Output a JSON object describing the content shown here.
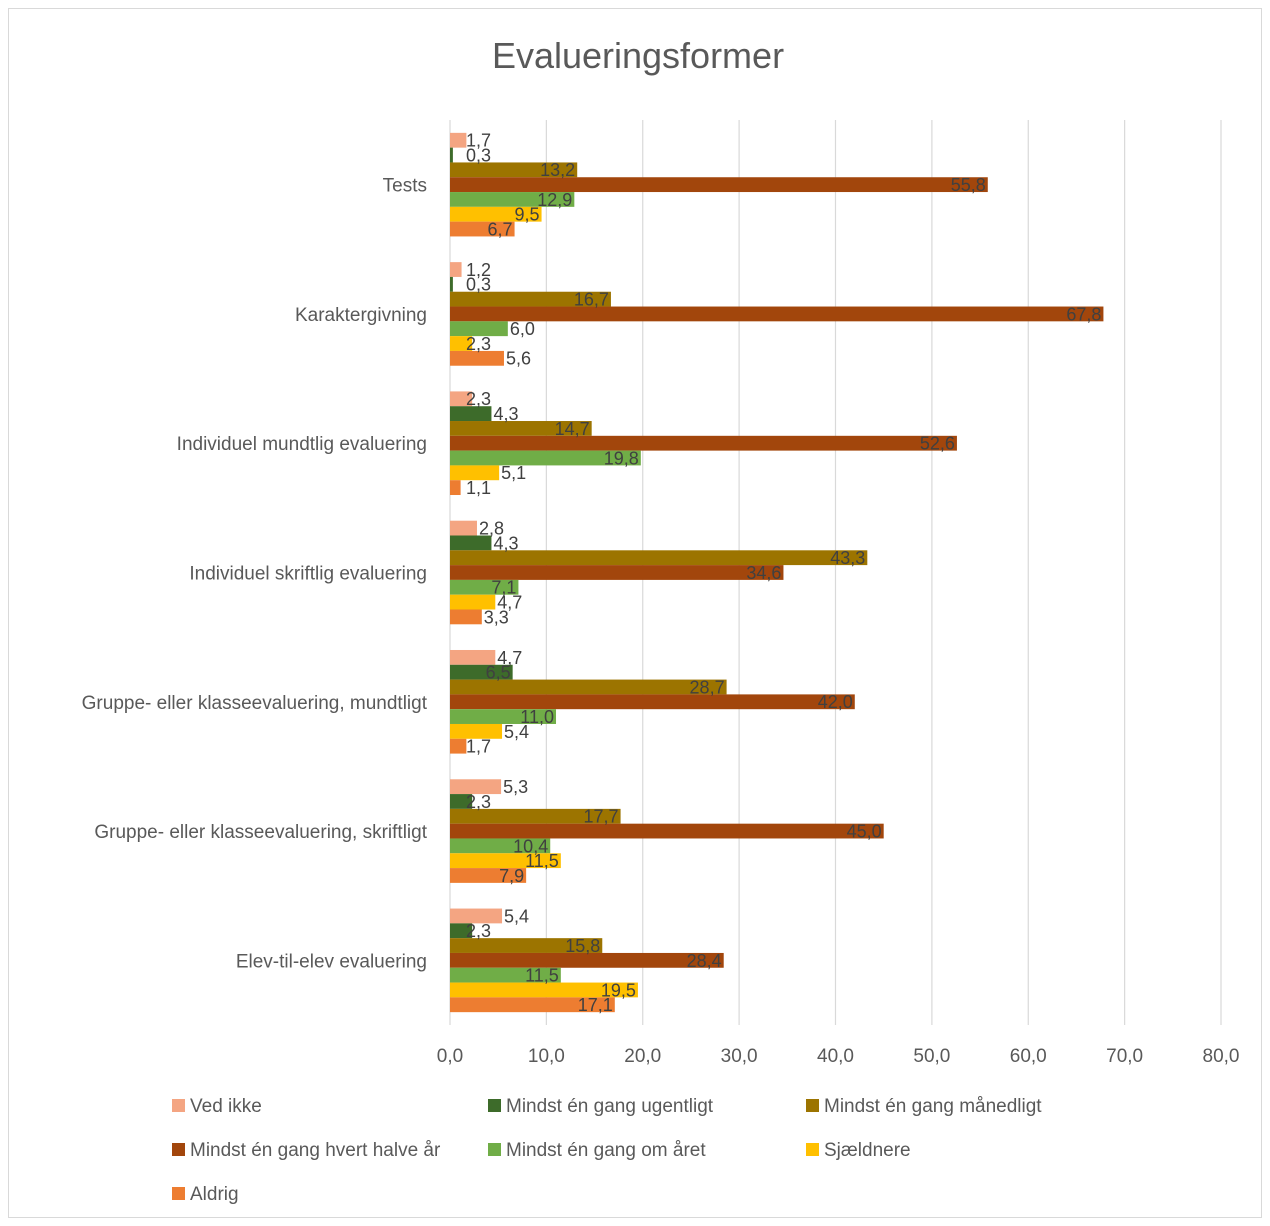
{
  "chart_data": {
    "type": "bar",
    "orientation": "horizontal",
    "title": "Evalueringsformer",
    "categories": [
      "Tests",
      "Karaktergivning",
      "Individuel mundtlig evaluering",
      "Individuel skriftlig evaluering",
      "Gruppe- eller klasseevaluering, mundtligt",
      "Gruppe- eller klasseevaluering, skriftligt",
      "Elev-til-elev evaluering"
    ],
    "series": [
      {
        "name": "Ved ikke",
        "color": "#F4A582",
        "values": [
          1.7,
          1.2,
          2.3,
          2.8,
          4.7,
          5.3,
          5.4
        ],
        "labels": [
          "1,7",
          "1,2",
          "2,3",
          "2,8",
          "4,7",
          "5,3",
          "5,4"
        ]
      },
      {
        "name": "Mindst én gang ugentligt",
        "color": "#3D6B2A",
        "values": [
          0.3,
          0.3,
          4.3,
          4.3,
          6.5,
          2.3,
          2.3
        ],
        "labels": [
          "0,3",
          "0,3",
          "4,3",
          "4,3",
          "6,5",
          "2,3",
          "2,3"
        ]
      },
      {
        "name": "Mindst én gang månedligt",
        "color": "#9C7400",
        "values": [
          13.2,
          16.7,
          14.7,
          43.3,
          28.7,
          17.7,
          15.8
        ],
        "labels": [
          "13,2",
          "16,7",
          "14,7",
          "43,3",
          "28,7",
          "17,7",
          "15,8"
        ]
      },
      {
        "name": "Mindst én gang hvert halve år",
        "color": "#A2460C",
        "values": [
          55.8,
          67.8,
          52.6,
          34.6,
          42.0,
          45.0,
          28.4
        ],
        "labels": [
          "55,8",
          "67,8",
          "52,6",
          "34,6",
          "42,0",
          "45,0",
          "28,4"
        ]
      },
      {
        "name": "Mindst én gang om året",
        "color": "#70AD47",
        "values": [
          12.9,
          6.0,
          19.8,
          7.1,
          11.0,
          10.4,
          11.5
        ],
        "labels": [
          "12,9",
          "6,0",
          "19,8",
          "7,1",
          "11,0",
          "10,4",
          "11,5"
        ]
      },
      {
        "name": "Sjældnere",
        "color": "#FFC000",
        "values": [
          9.5,
          2.3,
          5.1,
          4.7,
          5.4,
          11.5,
          19.5
        ],
        "labels": [
          "9,5",
          "2,3",
          "5,1",
          "4,7",
          "5,4",
          "11,5",
          "19,5"
        ]
      },
      {
        "name": "Aldrig",
        "color": "#ED7D31",
        "values": [
          6.7,
          5.6,
          1.1,
          3.3,
          1.7,
          7.9,
          17.1
        ],
        "labels": [
          "6,7",
          "5,6",
          "1,1",
          "3,3",
          "1,7",
          "7,9",
          "17,1"
        ]
      }
    ],
    "xlim": [
      0,
      80
    ],
    "xticks": [
      0,
      10,
      20,
      30,
      40,
      50,
      60,
      70,
      80
    ],
    "xtick_labels": [
      "0,0",
      "10,0",
      "20,0",
      "30,0",
      "40,0",
      "50,0",
      "60,0",
      "70,0",
      "80,0"
    ],
    "grid": "vertical",
    "legend_position": "bottom",
    "xlabel": "",
    "ylabel": ""
  }
}
